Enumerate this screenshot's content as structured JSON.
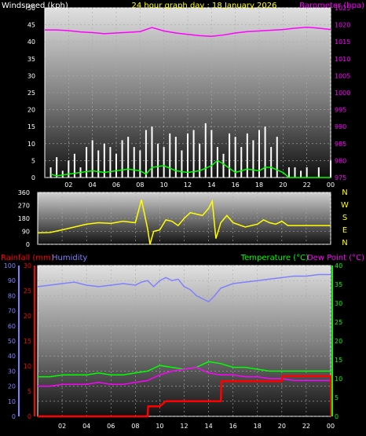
{
  "colors": {
    "windspeed": "#ffffff",
    "gust_bars": "#f0f0f0",
    "wind_avg": "#00ff00",
    "barometer": "#ff00ff",
    "direction": "#ffff00",
    "rainfall": "#ff0000",
    "humidity": "#8080ff",
    "temperature": "#00ff00",
    "dew_point": "#ff00ff",
    "title": "#ffff00",
    "axis_white": "#ffffff"
  },
  "chart_data": [
    {
      "type": "line",
      "title": "24 hour graph day : 18 January 2026",
      "ylabel": "Windspeed (kph)",
      "y2label": "Barometer (hpa)",
      "x_ticks": [
        "02",
        "04",
        "06",
        "08",
        "10",
        "12",
        "14",
        "16",
        "18",
        "20",
        "22",
        "00"
      ],
      "ylim": [
        0,
        50
      ],
      "y_ticks": [
        0,
        5,
        10,
        15,
        20,
        25,
        30,
        35,
        40,
        45,
        50
      ],
      "y2lim": [
        975,
        1025
      ],
      "y2_ticks": [
        975,
        980,
        985,
        990,
        995,
        1000,
        1005,
        1010,
        1015,
        1020,
        1025
      ],
      "grid": true,
      "series": [
        {
          "name": "Windspeed (kph)",
          "axis": "left",
          "x": [
            0.5,
            1,
            1.5,
            2,
            2.5,
            3,
            3.5,
            4,
            4.5,
            5,
            5.5,
            6,
            6.5,
            7,
            7.5,
            8,
            8.5,
            9,
            9.5,
            10,
            10.5,
            11,
            11.5,
            12,
            12.5,
            13,
            13.5,
            14,
            14.5,
            15,
            15.5,
            16,
            16.5,
            17,
            17.5,
            18,
            18.5,
            19,
            19.5,
            20,
            20.5,
            21,
            21.5,
            22,
            22.5,
            23,
            23.5,
            24
          ],
          "values": [
            3,
            6,
            2,
            5,
            7,
            3,
            9,
            11,
            8,
            10,
            9,
            7,
            11,
            12,
            9,
            8,
            14,
            15,
            10,
            9,
            13,
            12,
            8,
            13,
            14,
            10,
            16,
            14,
            9,
            7,
            13,
            12,
            9,
            13,
            11,
            14,
            15,
            9,
            12,
            0,
            3,
            3,
            2,
            3,
            0,
            3,
            0,
            5
          ]
        },
        {
          "name": "Average",
          "axis": "left",
          "x": [
            0.5,
            1,
            2,
            3,
            4,
            5,
            6,
            7,
            8,
            8.5,
            9,
            10,
            11,
            12,
            13,
            14,
            14.5,
            15,
            16,
            17,
            18,
            18.5,
            19,
            20,
            20.5,
            24
          ],
          "values": [
            1,
            0.5,
            1,
            1.5,
            2,
            1.5,
            2,
            2.5,
            2,
            1,
            3,
            3.5,
            2,
            1.5,
            2,
            3.5,
            5,
            4,
            1.5,
            2.5,
            2,
            3,
            3,
            1.5,
            0,
            0
          ]
        },
        {
          "name": "Barometer (hpa)",
          "axis": "right",
          "x": [
            0,
            1,
            2,
            3,
            4,
            5,
            6,
            7,
            8,
            9,
            10,
            11,
            12,
            13,
            14,
            15,
            16,
            17,
            18,
            19,
            20,
            21,
            22,
            23,
            24
          ],
          "values": [
            1018.5,
            1018.5,
            1018.3,
            1017.9,
            1017.7,
            1017.4,
            1017.6,
            1017.8,
            1018.0,
            1019.2,
            1018.2,
            1017.6,
            1017.2,
            1016.8,
            1016.6,
            1017.0,
            1017.6,
            1018.0,
            1018.2,
            1018.4,
            1018.6,
            1019.0,
            1019.3,
            1019.0,
            1018.6
          ]
        }
      ]
    },
    {
      "type": "line",
      "title": "",
      "ylim": [
        0,
        360
      ],
      "y_ticks": [
        0,
        90,
        180,
        270,
        360
      ],
      "compass": [
        "N",
        "W",
        "S",
        "E",
        "N"
      ],
      "x_ticks": [],
      "grid": true,
      "series": [
        {
          "name": "Direction",
          "x": [
            0,
            1,
            2,
            3,
            4,
            5,
            6,
            7,
            8,
            8.5,
            9,
            9.2,
            9.5,
            10,
            10.5,
            11,
            11.5,
            12,
            12.5,
            13,
            13.5,
            14,
            14.3,
            14.6,
            15,
            15.5,
            16,
            17,
            18,
            18.5,
            19,
            19.5,
            20,
            20.5,
            21,
            22,
            23,
            24
          ],
          "values": [
            80,
            82,
            100,
            120,
            140,
            150,
            145,
            160,
            150,
            310,
            110,
            0,
            90,
            100,
            170,
            160,
            130,
            180,
            220,
            210,
            200,
            250,
            300,
            40,
            150,
            200,
            150,
            120,
            140,
            170,
            150,
            140,
            160,
            130,
            130,
            130,
            130,
            130
          ]
        }
      ]
    },
    {
      "type": "line",
      "title": "",
      "ylabel": "Rainfall (mm)",
      "ylabel2": "Humidity",
      "y2label": "Temperature (°C)",
      "y2label2": "Dew Point (°C)",
      "x_ticks": [
        "02",
        "04",
        "06",
        "08",
        "10",
        "12",
        "14",
        "16",
        "18",
        "20",
        "22",
        "00"
      ],
      "ylim": [
        0,
        100
      ],
      "y_ticks": [
        0,
        10,
        20,
        30,
        40,
        50,
        60,
        70,
        80,
        90,
        100
      ],
      "rain_lim": [
        0,
        30
      ],
      "rain_ticks": [
        0,
        5,
        10,
        15,
        20,
        25,
        30
      ],
      "y2lim": [
        0,
        40
      ],
      "y2_ticks": [
        0,
        5,
        10,
        15,
        20,
        25,
        30,
        35,
        40
      ],
      "grid": true,
      "series": [
        {
          "name": "Humidity",
          "axis": "left",
          "x": [
            0,
            1,
            2,
            3,
            4,
            5,
            6,
            7,
            8,
            8.5,
            9,
            9.5,
            10,
            10.5,
            11,
            11.5,
            12,
            12.5,
            13,
            13.5,
            14,
            14.5,
            15,
            16,
            17,
            18,
            19,
            20,
            21,
            22,
            23,
            24
          ],
          "values": [
            86,
            87,
            88,
            89,
            87,
            86,
            87,
            88,
            87,
            89,
            90,
            86,
            90,
            92,
            90,
            91,
            86,
            84,
            80,
            78,
            76,
            80,
            85,
            88,
            89,
            90,
            91,
            92,
            93,
            93,
            94,
            94
          ]
        },
        {
          "name": "Temperature (°C)",
          "axis": "right",
          "x": [
            0,
            1,
            2,
            3,
            4,
            5,
            6,
            7,
            8,
            9,
            10,
            11,
            12,
            13,
            14,
            15,
            16,
            17,
            18,
            19,
            20,
            21,
            22,
            23,
            24
          ],
          "values": [
            10.5,
            10.5,
            11,
            11,
            11,
            11.5,
            11,
            11,
            11.5,
            12,
            13.5,
            13,
            12.5,
            13,
            14.5,
            14,
            13,
            13,
            12.5,
            12,
            12,
            12,
            12,
            12,
            12
          ]
        },
        {
          "name": "Dew Point (°C)",
          "axis": "right",
          "x": [
            0,
            1,
            2,
            3,
            4,
            5,
            6,
            7,
            8,
            9,
            10,
            11,
            12,
            13,
            14,
            15,
            16,
            17,
            18,
            19,
            20,
            21,
            22,
            23,
            24
          ],
          "values": [
            8,
            8,
            8.5,
            8.5,
            8.5,
            9,
            8.5,
            8.5,
            9,
            9.5,
            11,
            12,
            12.5,
            13,
            11.5,
            11,
            11,
            10.5,
            10.5,
            10,
            10,
            9.5,
            9.5,
            9.5,
            9.5
          ]
        },
        {
          "name": "Rainfall (mm)",
          "axis": "rain",
          "x": [
            0,
            9,
            9.05,
            10,
            10.5,
            15,
            15.05,
            15.5,
            20,
            20.05,
            23,
            24,
            24.05
          ],
          "values": [
            0,
            0,
            2,
            2,
            3,
            3,
            7,
            7,
            7,
            8,
            8,
            8,
            0
          ]
        }
      ]
    }
  ]
}
